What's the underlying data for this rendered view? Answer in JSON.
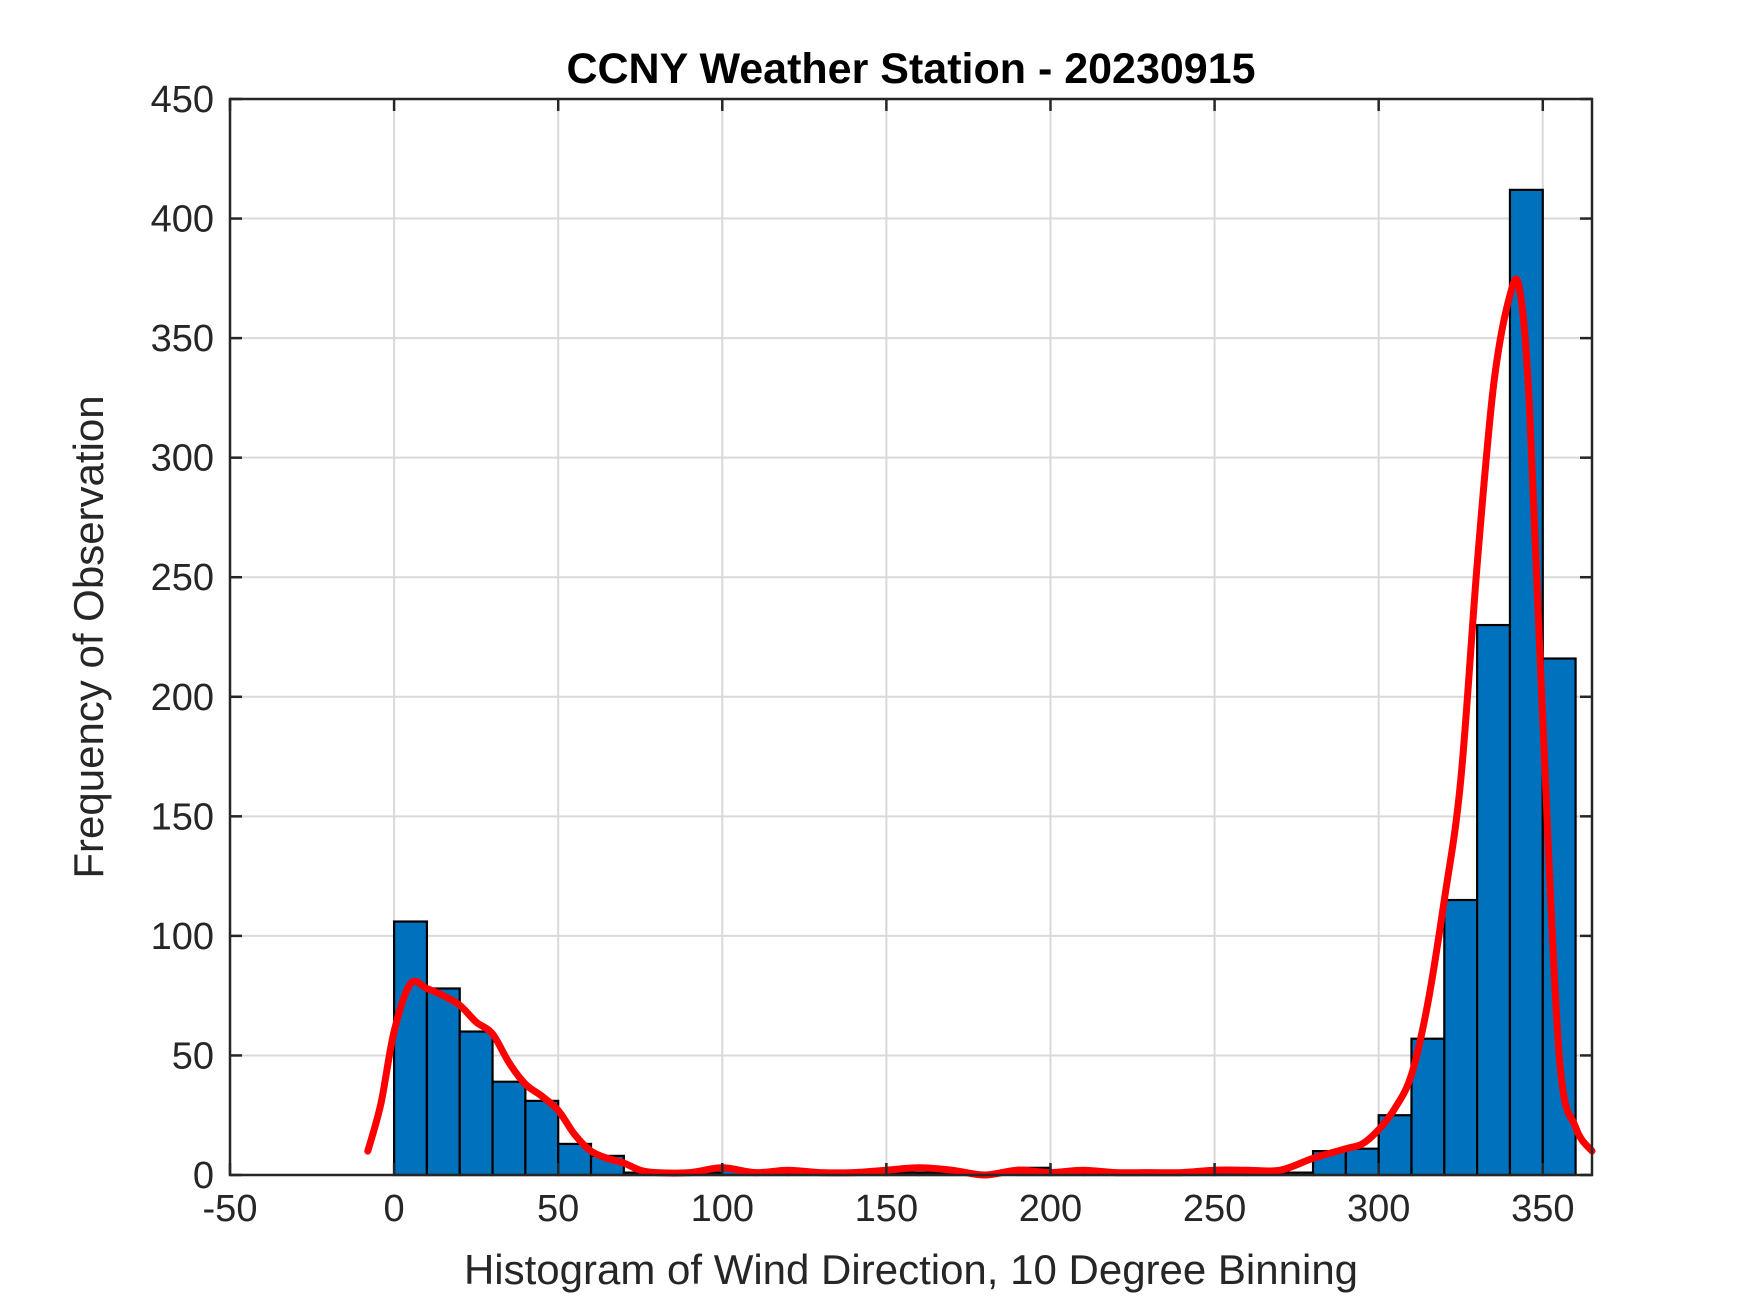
{
  "chart_data": {
    "type": "bar",
    "title": "CCNY Weather Station - 20230915",
    "xlabel": "Histogram of Wind Direction, 10 Degree Binning",
    "ylabel": "Frequency of Observation",
    "xlim": [
      -50,
      365
    ],
    "ylim": [
      0,
      450
    ],
    "xticks": [
      -50,
      0,
      50,
      100,
      150,
      200,
      250,
      300,
      350
    ],
    "yticks": [
      0,
      50,
      100,
      150,
      200,
      250,
      300,
      350,
      400,
      450
    ],
    "grid": true,
    "bin_width": 10,
    "bars": {
      "name": "histogram",
      "color": "#0072BD",
      "edge_color": "#000000",
      "bin_edges": [
        0,
        10,
        20,
        30,
        40,
        50,
        60,
        70,
        80,
        90,
        100,
        110,
        120,
        130,
        140,
        150,
        160,
        170,
        180,
        190,
        200,
        210,
        220,
        230,
        240,
        250,
        260,
        270,
        280,
        290,
        300,
        310,
        320,
        330,
        340,
        350,
        360
      ],
      "values": [
        106,
        78,
        60,
        39,
        31,
        13,
        8,
        1,
        1,
        1,
        2,
        1,
        1,
        1,
        1,
        1,
        1,
        1,
        0,
        3,
        2,
        1,
        1,
        1,
        1,
        1,
        1,
        1,
        10,
        11,
        25,
        57,
        115,
        230,
        412,
        216
      ]
    },
    "curve": {
      "name": "density-fit",
      "color": "#FF0000",
      "x": [
        -8,
        -4,
        0,
        5,
        10,
        15,
        20,
        25,
        30,
        35,
        40,
        45,
        50,
        55,
        60,
        65,
        70,
        75,
        80,
        90,
        100,
        110,
        120,
        130,
        140,
        150,
        160,
        170,
        180,
        190,
        200,
        210,
        220,
        230,
        240,
        250,
        260,
        270,
        280,
        290,
        295,
        300,
        305,
        310,
        315,
        320,
        325,
        330,
        335,
        340,
        343,
        346,
        350,
        355,
        360,
        365
      ],
      "y": [
        10,
        30,
        60,
        80,
        78,
        75,
        71,
        64,
        59,
        47,
        38,
        33,
        27,
        17,
        10,
        7,
        5,
        2,
        1,
        1,
        3,
        1,
        2,
        1,
        1,
        2,
        3,
        2,
        0,
        2,
        1,
        2,
        1,
        1,
        1,
        2,
        2,
        2,
        7,
        11,
        13,
        19,
        28,
        42,
        72,
        115,
        165,
        255,
        330,
        368,
        370,
        320,
        190,
        50,
        20,
        10
      ]
    }
  }
}
